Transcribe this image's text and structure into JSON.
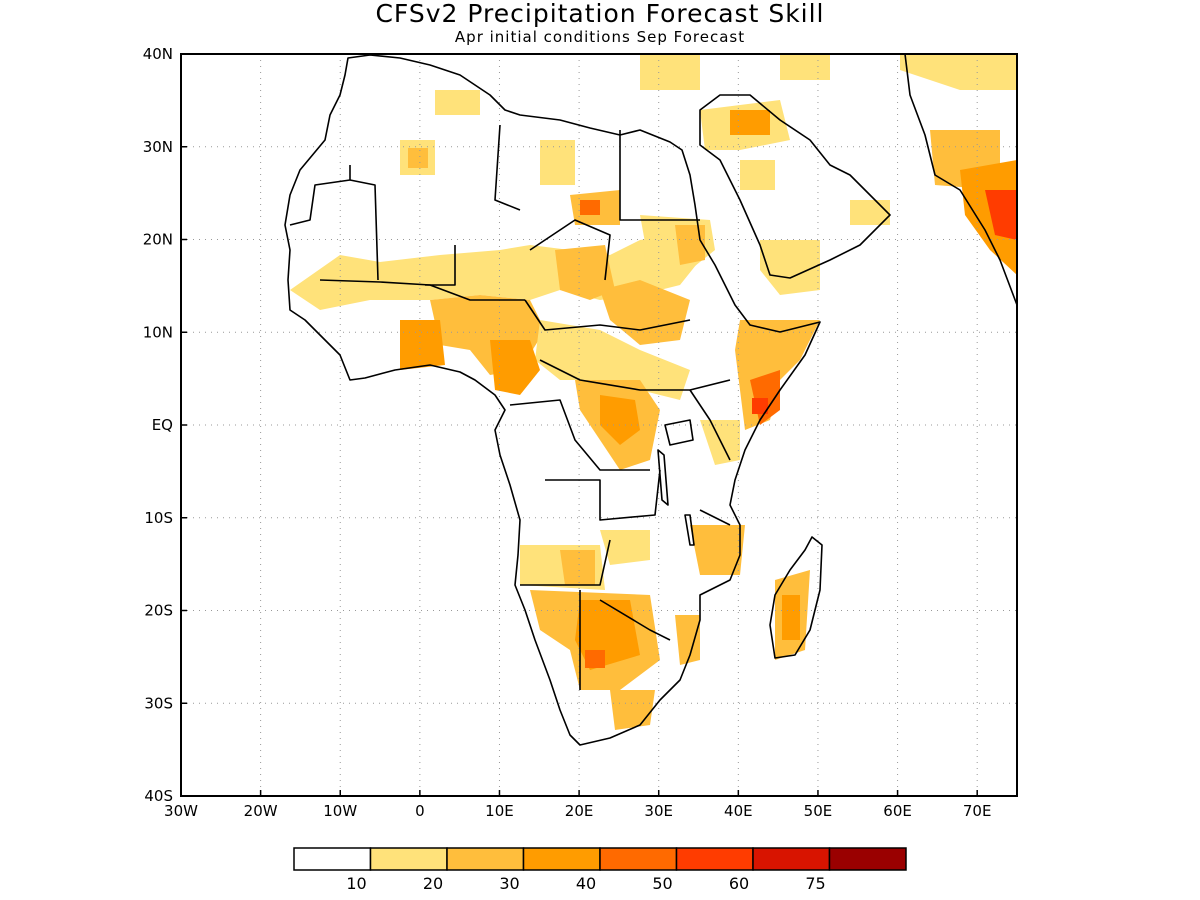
{
  "title": "CFSv2 Precipitation Forecast Skill",
  "subtitle": "Apr initial conditions  Sep Forecast",
  "map": {
    "lon_range": [
      -30,
      75
    ],
    "lat_range": [
      -40,
      40
    ],
    "lon_ticks": [
      "30W",
      "20W",
      "10W",
      "0",
      "10E",
      "20E",
      "30E",
      "40E",
      "50E",
      "60E",
      "70E"
    ],
    "lat_ticks": [
      "40N",
      "30N",
      "20N",
      "10N",
      "EQ",
      "10S",
      "20S",
      "30S",
      "40S"
    ],
    "grid": "dotted"
  },
  "colorbar": {
    "colors": [
      "#ffffff",
      "#ffe27a",
      "#ffbe3c",
      "#ff9c00",
      "#ff6a00",
      "#ff3c00",
      "#d81400",
      "#9a0000"
    ],
    "labels": [
      "10",
      "20",
      "30",
      "40",
      "50",
      "60",
      "75"
    ]
  }
}
